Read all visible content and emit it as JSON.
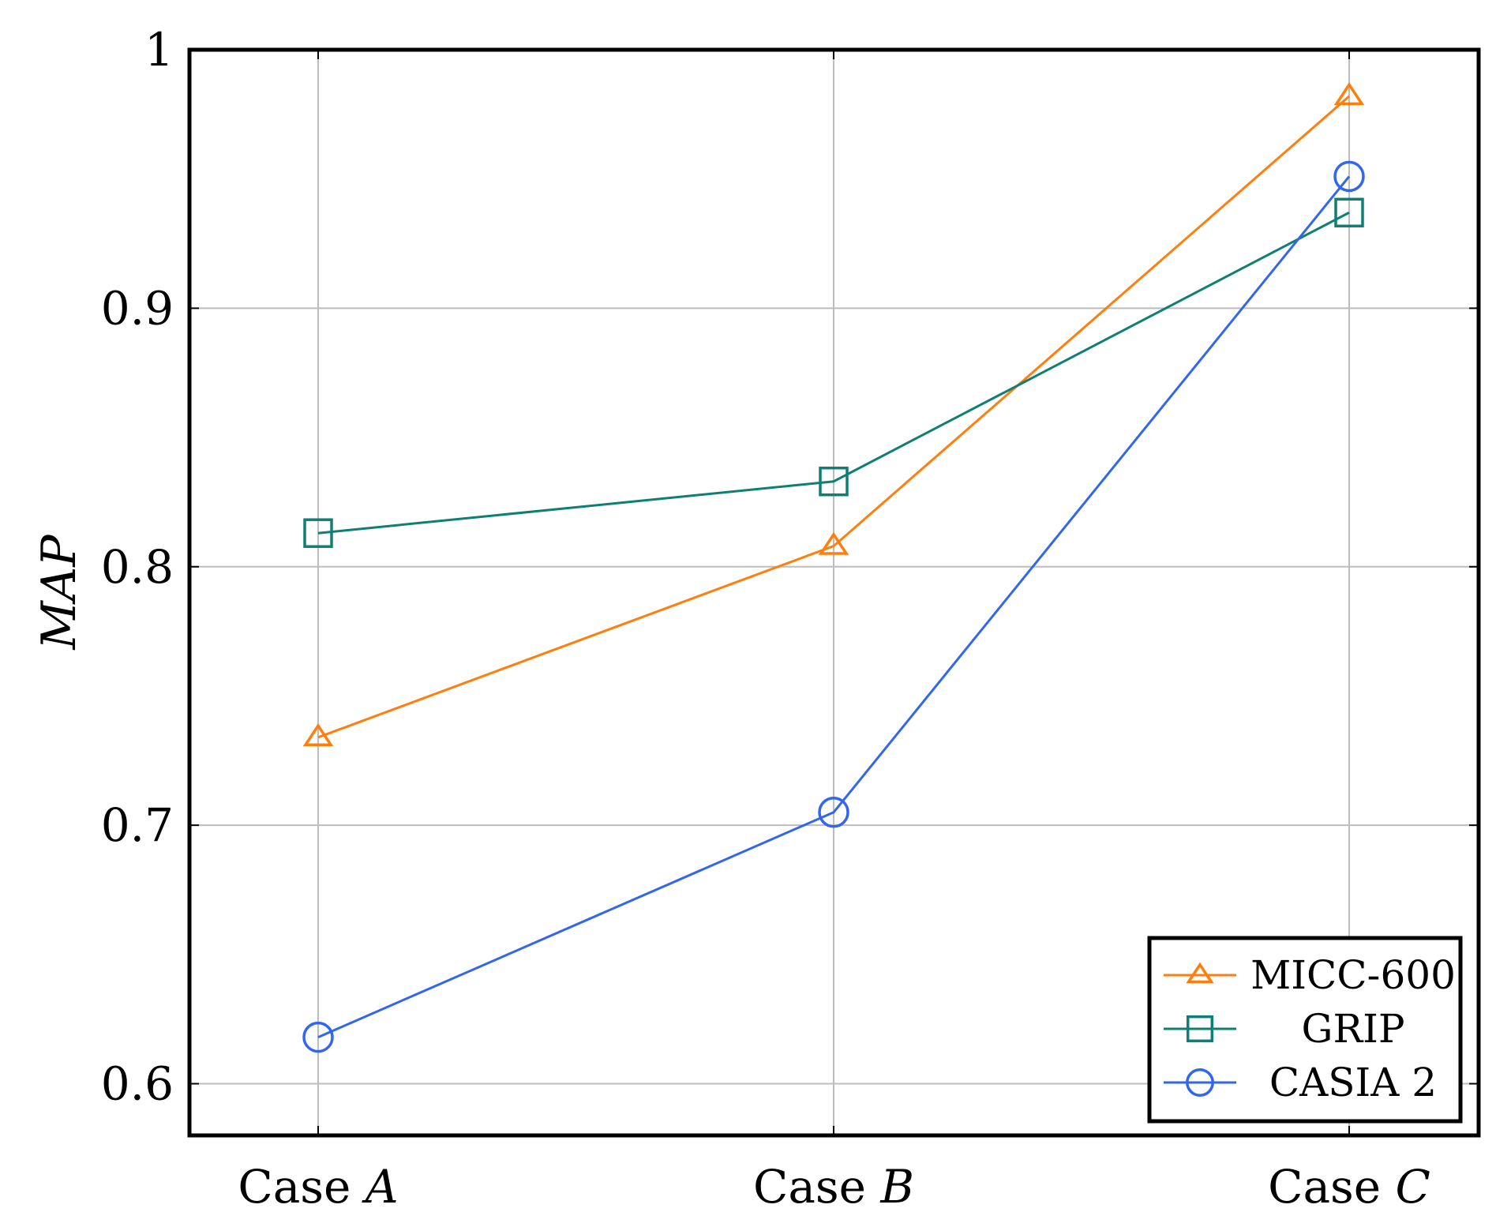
{
  "chart_data": {
    "type": "line",
    "title": "",
    "xlabel": "",
    "ylabel": "MAP",
    "ylim": [
      0.58,
      1.0
    ],
    "yticks": [
      0.6,
      0.7,
      0.8,
      0.9,
      1.0
    ],
    "ytick_labels": [
      "0.6",
      "0.7",
      "0.8",
      "0.9",
      "1"
    ],
    "categories": [
      {
        "prefix": "Case ",
        "letter": "A"
      },
      {
        "prefix": "Case ",
        "letter": "B"
      },
      {
        "prefix": "Case ",
        "letter": "C"
      }
    ],
    "grid": true,
    "legend_position": "bottom-right",
    "series": [
      {
        "name": "MICC-600",
        "marker": "triangle",
        "color": "#ff7f0e",
        "values": [
          0.734,
          0.808,
          0.982
        ]
      },
      {
        "name": "GRIP",
        "marker": "square",
        "color": "#0f7f73",
        "values": [
          0.813,
          0.833,
          0.937
        ]
      },
      {
        "name": "CASIA 2",
        "marker": "circle",
        "color": "#3366ee",
        "values": [
          0.618,
          0.705,
          0.951
        ]
      }
    ]
  }
}
